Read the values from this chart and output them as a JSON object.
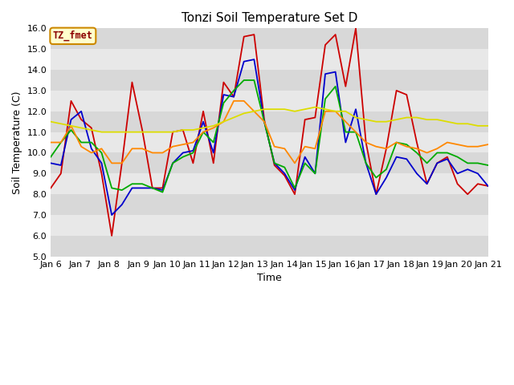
{
  "title": "Tonzi Soil Temperature Set D",
  "xlabel": "Time",
  "ylabel": "Soil Temperature (C)",
  "ylim": [
    5.0,
    16.0
  ],
  "yticks": [
    5.0,
    6.0,
    7.0,
    8.0,
    9.0,
    10.0,
    11.0,
    12.0,
    13.0,
    14.0,
    15.0,
    16.0
  ],
  "xtick_labels": [
    "Jan 6",
    "Jan 7",
    "Jan 8",
    "Jan 9",
    "Jan 10",
    "Jan 11",
    "Jan 12",
    "Jan 13",
    "Jan 14",
    "Jan 15",
    "Jan 16",
    "Jan 17",
    "Jan 18",
    "Jan 19",
    "Jan 20",
    "Jan 21"
  ],
  "legend_label": "TZ_fmet",
  "series": {
    "-2cm": {
      "color": "#cc0000",
      "values": [
        8.3,
        9.0,
        12.5,
        11.6,
        11.2,
        9.0,
        6.0,
        9.5,
        13.4,
        11.1,
        8.3,
        8.3,
        11.0,
        11.1,
        9.5,
        12.0,
        9.5,
        13.4,
        12.7,
        15.6,
        15.7,
        11.6,
        9.4,
        8.9,
        8.0,
        11.6,
        11.7,
        15.2,
        15.7,
        13.2,
        16.0,
        10.5,
        8.0,
        10.2,
        13.0,
        12.8,
        10.5,
        8.5,
        9.5,
        9.8,
        8.5,
        8.0,
        8.5,
        8.4
      ]
    },
    "-4cm": {
      "color": "#0000cc",
      "values": [
        9.5,
        9.4,
        11.6,
        12.0,
        10.2,
        9.5,
        7.0,
        7.5,
        8.3,
        8.3,
        8.3,
        8.2,
        9.5,
        10.0,
        10.1,
        11.5,
        10.0,
        12.8,
        12.7,
        14.4,
        14.5,
        11.5,
        9.5,
        9.0,
        8.2,
        9.8,
        9.0,
        13.8,
        13.9,
        10.5,
        12.1,
        9.5,
        8.0,
        8.8,
        9.8,
        9.7,
        9.0,
        8.5,
        9.5,
        9.7,
        9.0,
        9.2,
        9.0,
        8.4
      ]
    },
    "-8cm": {
      "color": "#00aa00",
      "values": [
        9.8,
        10.5,
        11.1,
        10.5,
        10.5,
        10.0,
        8.3,
        8.2,
        8.5,
        8.5,
        8.3,
        8.1,
        9.5,
        9.8,
        10.0,
        11.0,
        10.5,
        12.4,
        13.0,
        13.5,
        13.5,
        11.5,
        9.5,
        9.3,
        8.3,
        9.5,
        9.0,
        12.6,
        13.2,
        11.0,
        11.0,
        9.5,
        8.8,
        9.2,
        10.5,
        10.4,
        10.0,
        9.5,
        10.0,
        10.0,
        9.8,
        9.5,
        9.5,
        9.4
      ]
    },
    "-16cm": {
      "color": "#ff8800",
      "values": [
        10.5,
        10.5,
        11.3,
        10.3,
        10.0,
        10.2,
        9.5,
        9.5,
        10.2,
        10.2,
        10.0,
        10.0,
        10.3,
        10.4,
        10.5,
        11.0,
        11.2,
        11.5,
        12.5,
        12.5,
        12.0,
        11.5,
        10.3,
        10.2,
        9.5,
        10.3,
        10.2,
        12.0,
        12.0,
        11.5,
        11.0,
        10.5,
        10.3,
        10.2,
        10.5,
        10.3,
        10.2,
        10.0,
        10.2,
        10.5,
        10.4,
        10.3,
        10.3,
        10.4
      ]
    },
    "-32cm": {
      "color": "#dddd00",
      "values": [
        11.5,
        11.4,
        11.3,
        11.2,
        11.1,
        11.0,
        11.0,
        11.0,
        11.0,
        11.0,
        11.0,
        11.0,
        11.0,
        11.1,
        11.1,
        11.2,
        11.3,
        11.5,
        11.7,
        11.9,
        12.0,
        12.1,
        12.1,
        12.1,
        12.0,
        12.1,
        12.2,
        12.1,
        12.0,
        12.0,
        11.7,
        11.6,
        11.5,
        11.5,
        11.6,
        11.7,
        11.7,
        11.6,
        11.6,
        11.5,
        11.4,
        11.4,
        11.3,
        11.3
      ]
    }
  },
  "fig_bg_color": "#ffffff",
  "plot_bg_color": "#e8e8e8",
  "grid_color": "#ffffff",
  "title_fontsize": 11,
  "label_fontsize": 9,
  "tick_fontsize": 8,
  "band_colors": [
    "#d8d8d8",
    "#e8e8e8"
  ]
}
